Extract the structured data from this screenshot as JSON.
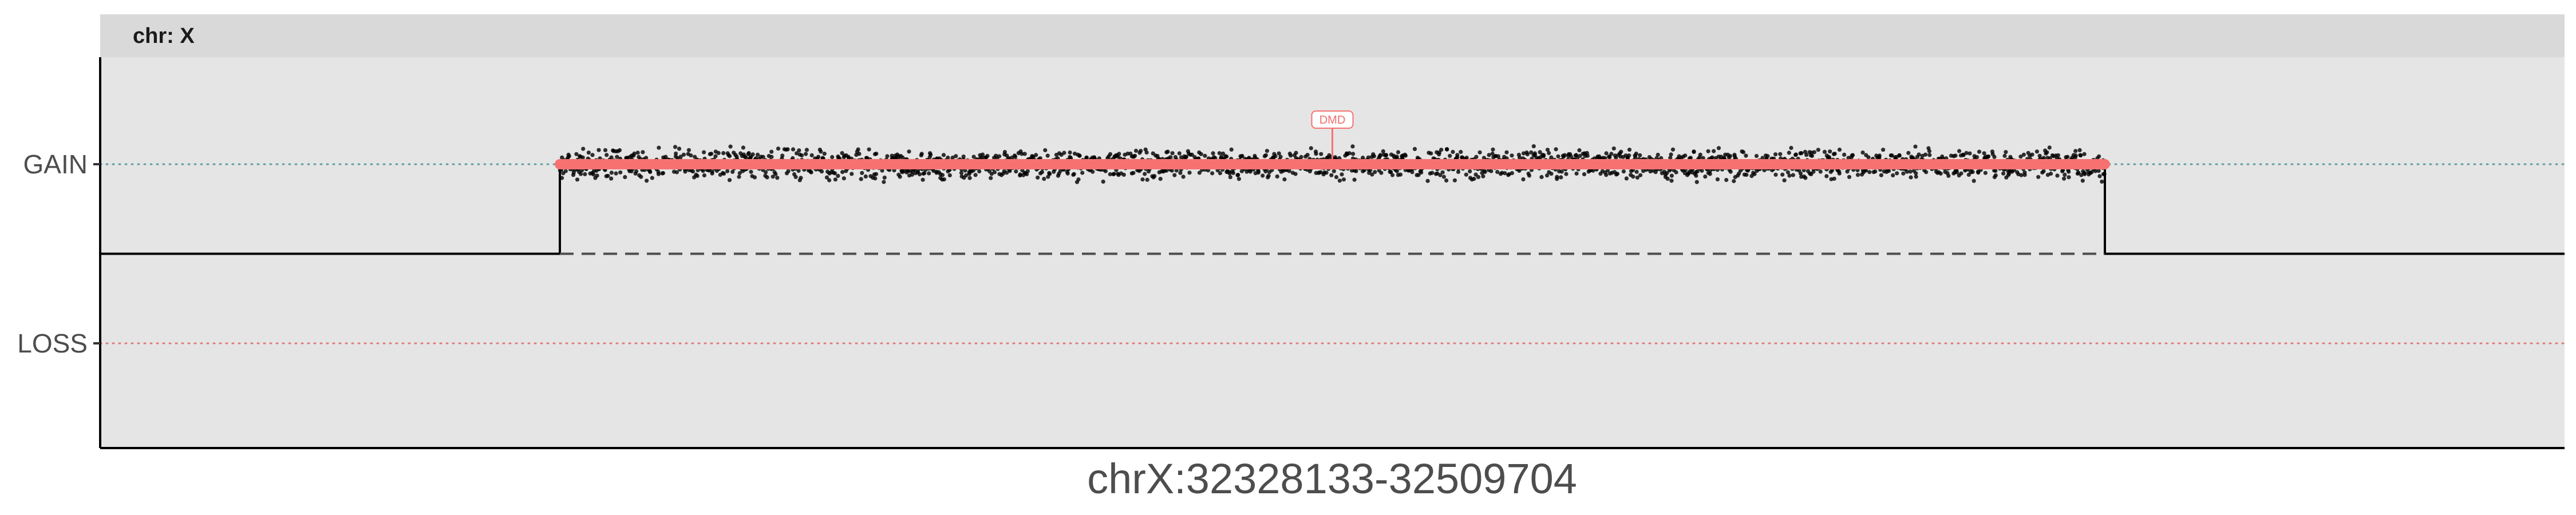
{
  "chart_data": {
    "type": "scatter",
    "facet_label": "chr: X",
    "x_title": "chrX:32328133-32509704",
    "y_categories": [
      "GAIN",
      "LOSS"
    ],
    "region": {
      "chromosome": "X",
      "start": 32328133,
      "end": 32509704
    },
    "gene_annotation": {
      "label": "DMD",
      "position_fraction": 0.5
    },
    "segment": {
      "call": "GAIN",
      "start_fraction": 0.0,
      "end_fraction": 1.0
    },
    "copy_number_profile": {
      "baseline": "neutral",
      "elevated_state": "GAIN",
      "elevated_start_fraction": 0.0,
      "elevated_end_fraction": 1.0
    },
    "points": {
      "n": 2600,
      "center": "GAIN",
      "spread_fraction_of_gain_loss_gap": 0.085
    },
    "colors": {
      "panel_background": "#e5e5e5",
      "strip_background": "#d9d9d9",
      "segment": "#f87171",
      "points": "#000000",
      "gain_reference": "#5f9ea0",
      "loss_reference": "#e07a7a",
      "profile_line": "#000000",
      "label_text": "#4d4d4d"
    }
  }
}
